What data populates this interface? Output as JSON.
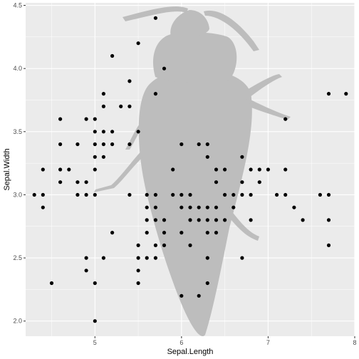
{
  "chart_data": {
    "type": "scatter",
    "xlabel": "Sepal.Length",
    "ylabel": "Sepal.Width",
    "xlim": [
      4.2,
      8.0
    ],
    "ylim": [
      1.88,
      4.52
    ],
    "x_ticks": [
      "5",
      "6",
      "7",
      "8"
    ],
    "x_tick_values": [
      5,
      6,
      7,
      8
    ],
    "y_ticks": [
      "2.0",
      "2.5",
      "3.0",
      "3.5",
      "4.0",
      "4.5"
    ],
    "y_tick_values": [
      2.0,
      2.5,
      3.0,
      3.5,
      4.0,
      4.5
    ],
    "grid": true,
    "background_image": "beetle silhouette",
    "colors": {
      "panel": "#ebebeb",
      "grid_major": "#ffffff",
      "point": "#000000",
      "silhouette": "#bdbdbd"
    },
    "series": [
      {
        "points": [
          [
            4.3,
            3.0
          ],
          [
            4.4,
            2.9
          ],
          [
            4.4,
            3.0
          ],
          [
            4.4,
            3.2
          ],
          [
            4.5,
            2.3
          ],
          [
            4.6,
            3.1
          ],
          [
            4.6,
            3.2
          ],
          [
            4.6,
            3.4
          ],
          [
            4.6,
            3.6
          ],
          [
            4.7,
            3.2
          ],
          [
            4.8,
            3.0
          ],
          [
            4.8,
            3.1
          ],
          [
            4.8,
            3.4
          ],
          [
            4.9,
            2.4
          ],
          [
            4.9,
            2.5
          ],
          [
            4.9,
            3.0
          ],
          [
            4.9,
            3.1
          ],
          [
            4.9,
            3.6
          ],
          [
            5.0,
            2.0
          ],
          [
            5.0,
            2.3
          ],
          [
            5.0,
            3.0
          ],
          [
            5.0,
            3.2
          ],
          [
            5.0,
            3.3
          ],
          [
            5.0,
            3.4
          ],
          [
            5.0,
            3.5
          ],
          [
            5.0,
            3.6
          ],
          [
            5.1,
            2.5
          ],
          [
            5.1,
            3.3
          ],
          [
            5.1,
            3.4
          ],
          [
            5.1,
            3.5
          ],
          [
            5.1,
            3.7
          ],
          [
            5.1,
            3.8
          ],
          [
            5.2,
            2.7
          ],
          [
            5.2,
            3.4
          ],
          [
            5.2,
            3.5
          ],
          [
            5.2,
            4.1
          ],
          [
            5.3,
            3.7
          ],
          [
            5.4,
            3.0
          ],
          [
            5.4,
            3.4
          ],
          [
            5.4,
            3.7
          ],
          [
            5.4,
            3.9
          ],
          [
            5.5,
            2.3
          ],
          [
            5.5,
            2.4
          ],
          [
            5.5,
            2.5
          ],
          [
            5.5,
            2.6
          ],
          [
            5.5,
            3.5
          ],
          [
            5.5,
            4.2
          ],
          [
            5.6,
            2.5
          ],
          [
            5.6,
            2.7
          ],
          [
            5.6,
            2.8
          ],
          [
            5.6,
            2.9
          ],
          [
            5.6,
            3.0
          ],
          [
            5.7,
            2.5
          ],
          [
            5.7,
            2.6
          ],
          [
            5.7,
            2.8
          ],
          [
            5.7,
            2.9
          ],
          [
            5.7,
            3.0
          ],
          [
            5.7,
            3.8
          ],
          [
            5.7,
            4.4
          ],
          [
            5.8,
            2.6
          ],
          [
            5.8,
            2.7
          ],
          [
            5.8,
            2.8
          ],
          [
            5.8,
            4.0
          ],
          [
            5.9,
            3.0
          ],
          [
            5.9,
            3.2
          ],
          [
            6.0,
            2.2
          ],
          [
            6.0,
            2.7
          ],
          [
            6.0,
            2.9
          ],
          [
            6.0,
            3.0
          ],
          [
            6.0,
            3.4
          ],
          [
            6.1,
            2.6
          ],
          [
            6.1,
            2.8
          ],
          [
            6.1,
            2.9
          ],
          [
            6.1,
            3.0
          ],
          [
            6.2,
            2.2
          ],
          [
            6.2,
            2.8
          ],
          [
            6.2,
            2.9
          ],
          [
            6.2,
            3.4
          ],
          [
            6.3,
            2.3
          ],
          [
            6.3,
            2.5
          ],
          [
            6.3,
            2.7
          ],
          [
            6.3,
            2.8
          ],
          [
            6.3,
            2.9
          ],
          [
            6.3,
            3.3
          ],
          [
            6.3,
            3.4
          ],
          [
            6.4,
            2.7
          ],
          [
            6.4,
            2.8
          ],
          [
            6.4,
            2.9
          ],
          [
            6.4,
            3.1
          ],
          [
            6.4,
            3.2
          ],
          [
            6.5,
            2.8
          ],
          [
            6.5,
            3.0
          ],
          [
            6.5,
            3.2
          ],
          [
            6.6,
            2.9
          ],
          [
            6.6,
            3.0
          ],
          [
            6.7,
            2.5
          ],
          [
            6.7,
            3.0
          ],
          [
            6.7,
            3.1
          ],
          [
            6.7,
            3.3
          ],
          [
            6.8,
            2.8
          ],
          [
            6.8,
            3.0
          ],
          [
            6.8,
            3.2
          ],
          [
            6.9,
            3.1
          ],
          [
            6.9,
            3.2
          ],
          [
            7.0,
            3.2
          ],
          [
            7.1,
            3.0
          ],
          [
            7.2,
            3.0
          ],
          [
            7.2,
            3.2
          ],
          [
            7.2,
            3.6
          ],
          [
            7.3,
            2.9
          ],
          [
            7.4,
            2.8
          ],
          [
            7.6,
            3.0
          ],
          [
            7.7,
            2.6
          ],
          [
            7.7,
            2.8
          ],
          [
            7.7,
            3.0
          ],
          [
            7.7,
            3.8
          ],
          [
            7.9,
            3.8
          ]
        ]
      }
    ]
  }
}
